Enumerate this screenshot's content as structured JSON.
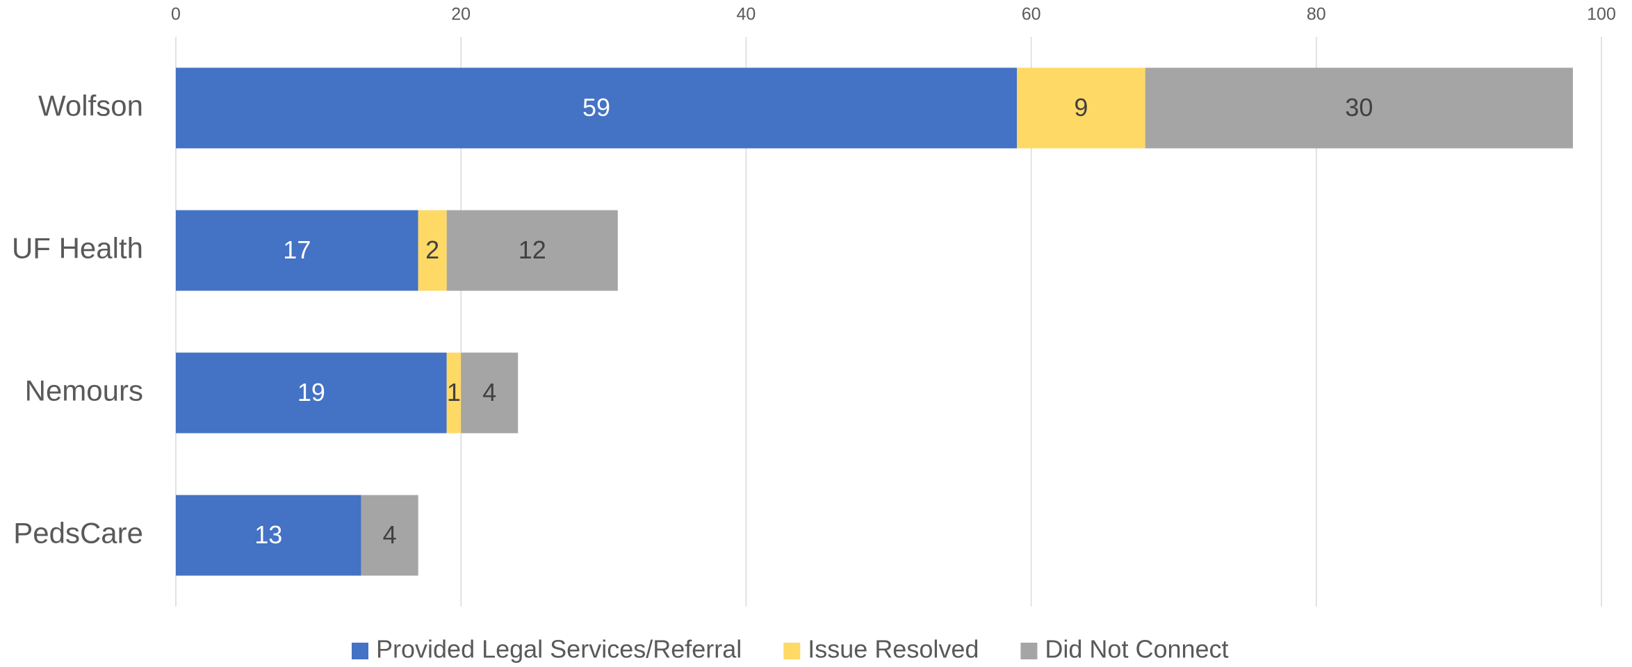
{
  "chart_data": {
    "type": "bar",
    "orientation": "horizontal",
    "stacked": true,
    "categories": [
      "Wolfson",
      "UF Health",
      "Nemours",
      "PedsCare"
    ],
    "series": [
      {
        "name": "Provided Legal Services/Referral",
        "color": "#4472c4",
        "values": [
          59,
          17,
          19,
          13
        ]
      },
      {
        "name": "Issue Resolved",
        "color": "#ffd966",
        "values": [
          9,
          2,
          1,
          null
        ]
      },
      {
        "name": "Did Not Connect",
        "color": "#a5a5a5",
        "values": [
          30,
          12,
          4,
          4
        ]
      }
    ],
    "xlim": [
      0,
      100
    ],
    "xticks": [
      0,
      20,
      40,
      60,
      80,
      100
    ],
    "grid": true,
    "legend": "bottom"
  }
}
